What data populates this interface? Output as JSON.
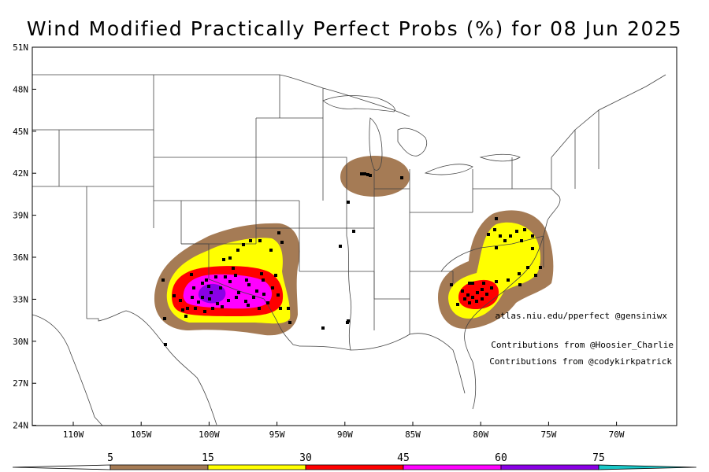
{
  "title": "Wind Modified Practically Perfect Probs (%) for 08 Jun 2025",
  "latitude_labels": [
    "51N",
    "48N",
    "45N",
    "42N",
    "39N",
    "36N",
    "33N",
    "30N",
    "27N",
    "24N"
  ],
  "longitude_labels": [
    "110W",
    "105W",
    "100W",
    "95W",
    "90W",
    "85W",
    "80W",
    "75W",
    "70W"
  ],
  "credits": {
    "source": "atlas.niu.edu/pperfect @gensiniwx",
    "contrib1": "Contributions from @Hoosier_Charlie",
    "contrib2": "Contributions from @codykirkpatrick"
  },
  "colorbar": {
    "ticks": [
      "5",
      "15",
      "30",
      "45",
      "60",
      "75"
    ],
    "colors": [
      "#ffffff",
      "#a57b55",
      "#ffff00",
      "#ff0000",
      "#ff00ff",
      "#8a00e6",
      "#19c8c8"
    ]
  },
  "probability_contours": [
    {
      "region": "southern-plains",
      "levels": [
        5,
        15,
        30,
        45,
        60
      ]
    },
    {
      "region": "lake-michigan",
      "levels": [
        5
      ]
    },
    {
      "region": "carolinas-virginia",
      "levels": [
        5,
        15,
        30
      ]
    }
  ],
  "map_extent": {
    "lon": [
      -115,
      -67
    ],
    "lat": [
      24,
      51
    ]
  }
}
